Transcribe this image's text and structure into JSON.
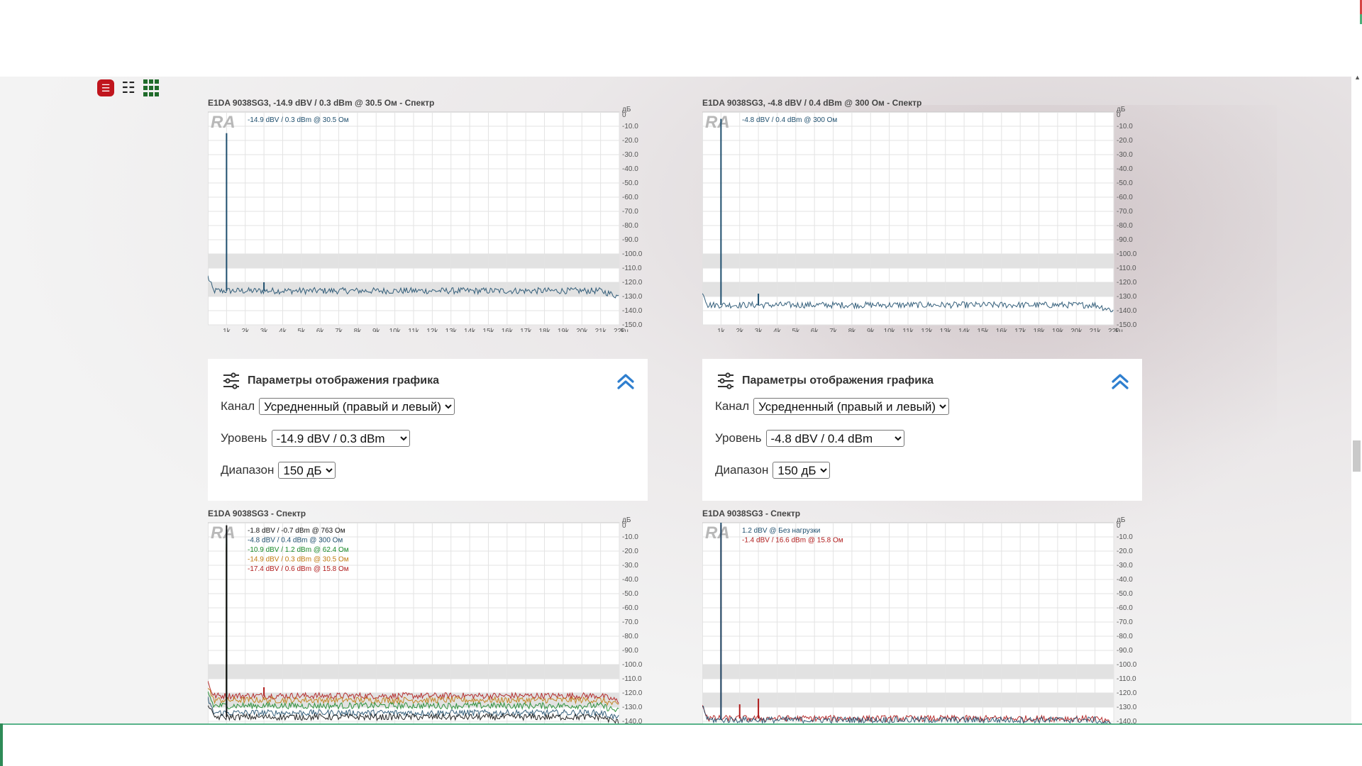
{
  "colors": {
    "accent_red": "#c0151d",
    "grid_green": "#1f6b2a",
    "chevron_blue": "#2f7fcf",
    "trace_blue": "#1f4f6e",
    "bottom_bar_green": "#59b38a"
  },
  "view_toggles": {
    "icons": [
      "menu-icon",
      "list-icon",
      "grid-icon"
    ],
    "menu_glyph": "☰",
    "list_glyph": "☷"
  },
  "charts": [
    {
      "title": "E1DA 9038SG3, -14.9 dBV / 0.3 dBm @ 30.5 Ом - Спектр",
      "logo": "RA",
      "yunit": "дБ",
      "xunit": "Гц",
      "ytop": "0",
      "yticks": [
        "-10.0",
        "-20.0",
        "-30.0",
        "-40.0",
        "-50.0",
        "-60.0",
        "-70.0",
        "-80.0",
        "-90.0",
        "-100.0",
        "-110.0",
        "-120.0",
        "-130.0",
        "-140.0",
        "-150.0"
      ],
      "xticks": [
        "1k",
        "2k",
        "3k",
        "4k",
        "5k",
        "6k",
        "7k",
        "8k",
        "9k",
        "10k",
        "11k",
        "12k",
        "13k",
        "14k",
        "15k",
        "16k",
        "17k",
        "18k",
        "19k",
        "20k",
        "21k",
        "22k"
      ],
      "legend": [
        {
          "label": "-14.9 dBV / 0.3 dBm @ 30.5 Ом",
          "color": "#1f4f6e"
        }
      ]
    },
    {
      "title": "E1DA 9038SG3, -4.8 dBV / 0.4 dBm @ 300 Ом - Спектр",
      "logo": "RA",
      "yunit": "дБ",
      "xunit": "Гц",
      "ytop": "0",
      "yticks": [
        "-10.0",
        "-20.0",
        "-30.0",
        "-40.0",
        "-50.0",
        "-60.0",
        "-70.0",
        "-80.0",
        "-90.0",
        "-100.0",
        "-110.0",
        "-120.0",
        "-130.0",
        "-140.0",
        "-150.0"
      ],
      "xticks": [
        "1k",
        "2k",
        "3k",
        "4k",
        "5k",
        "6k",
        "7k",
        "8k",
        "9k",
        "10k",
        "11k",
        "12k",
        "13k",
        "14k",
        "15k",
        "16k",
        "17k",
        "18k",
        "19k",
        "20k",
        "21k",
        "22k"
      ],
      "legend": [
        {
          "label": "-4.8 dBV / 0.4 dBm @ 300 Ом",
          "color": "#1f4f6e"
        }
      ]
    },
    {
      "title": "E1DA 9038SG3 - Спектр",
      "logo": "RA",
      "yunit": "дБ",
      "ytop": "0",
      "yticks": [
        "-10.0",
        "-20.0",
        "-30.0",
        "-40.0",
        "-50.0",
        "-60.0",
        "-70.0",
        "-80.0",
        "-90.0",
        "-100.0",
        "-110.0",
        "-120.0",
        "-130.0",
        "-140.0"
      ],
      "legend": [
        {
          "label": "-1.8 dBV / -0.7 dBm @ 763 Ом",
          "color": "#111111"
        },
        {
          "label": "-4.8 dBV / 0.4 dBm @ 300 Ом",
          "color": "#1f4f6e"
        },
        {
          "label": "-10.9 dBV / 1.2 dBm @ 62.4 Ом",
          "color": "#1a8a2a"
        },
        {
          "label": "-14.9 dBV / 0.3 dBm @ 30.5 Ом",
          "color": "#c07a10"
        },
        {
          "label": "-17.4 dBV / 0.6 dBm @ 15.8 Ом",
          "color": "#b01c1c"
        }
      ]
    },
    {
      "title": "E1DA 9038SG3 - Спектр",
      "logo": "RA",
      "yunit": "дБ",
      "ytop": "0",
      "yticks": [
        "-10.0",
        "-20.0",
        "-30.0",
        "-40.0",
        "-50.0",
        "-60.0",
        "-70.0",
        "-80.0",
        "-90.0",
        "-100.0",
        "-110.0",
        "-120.0",
        "-130.0",
        "-140.0"
      ],
      "legend": [
        {
          "label": "1.2 dBV @ Без нагрузки",
          "color": "#1f4f6e"
        },
        {
          "label": "-1.4 dBV / 16.6 dBm @ 15.8 Ом",
          "color": "#b01c1c"
        }
      ]
    }
  ],
  "chart_data": [
    {
      "type": "line",
      "title": "E1DA 9038SG3, -14.9 dBV / 0.3 dBm @ 30.5 Ом - Спектр",
      "xlabel": "Гц",
      "ylabel": "дБ",
      "xlim": [
        0,
        22000
      ],
      "ylim": [
        -150,
        0
      ],
      "series": [
        {
          "name": "-14.9 dBV / 0.3 dBm @ 30.5 Ом",
          "noise_floor_db": -126,
          "peaks": [
            {
              "x": 1000,
              "y": -14.9
            },
            {
              "x": 3000,
              "y": -120
            }
          ]
        }
      ]
    },
    {
      "type": "line",
      "title": "E1DA 9038SG3, -4.8 dBV / 0.4 dBm @ 300 Ом - Спектр",
      "xlabel": "Гц",
      "ylabel": "дБ",
      "xlim": [
        0,
        22000
      ],
      "ylim": [
        -150,
        0
      ],
      "series": [
        {
          "name": "-4.8 dBV / 0.4 dBm @ 300 Ом",
          "noise_floor_db": -136,
          "peaks": [
            {
              "x": 1000,
              "y": -4.8
            },
            {
              "x": 3000,
              "y": -128
            }
          ]
        }
      ]
    },
    {
      "type": "line",
      "title": "E1DA 9038SG3 - Спектр",
      "ylabel": "дБ",
      "xlim": [
        0,
        22000
      ],
      "ylim": [
        -140,
        0
      ],
      "series": [
        {
          "name": "-1.8 dBV / -0.7 dBm @ 763 Ом",
          "noise_floor_db": -137,
          "peaks": [
            {
              "x": 1000,
              "y": -1.8
            }
          ]
        },
        {
          "name": "-4.8 dBV / 0.4 dBm @ 300 Ом",
          "noise_floor_db": -134,
          "peaks": [
            {
              "x": 1000,
              "y": -4.8
            }
          ]
        },
        {
          "name": "-10.9 dBV / 1.2 dBm @ 62.4 Ом",
          "noise_floor_db": -129,
          "peaks": [
            {
              "x": 1000,
              "y": -10.9
            }
          ]
        },
        {
          "name": "-14.9 dBV / 0.3 dBm @ 30.5 Ом",
          "noise_floor_db": -125,
          "peaks": [
            {
              "x": 1000,
              "y": -14.9
            }
          ]
        },
        {
          "name": "-17.4 dBV / 0.6 dBm @ 15.8 Ом",
          "noise_floor_db": -122,
          "peaks": [
            {
              "x": 1000,
              "y": -17.4
            },
            {
              "x": 3000,
              "y": -116
            }
          ]
        }
      ]
    },
    {
      "type": "line",
      "title": "E1DA 9038SG3 - Спектр",
      "ylabel": "дБ",
      "xlim": [
        0,
        22000
      ],
      "ylim": [
        -140,
        0
      ],
      "series": [
        {
          "name": "1.2 dBV @ Без нагрузки",
          "noise_floor_db": -139,
          "peaks": [
            {
              "x": 1000,
              "y": 1.2
            }
          ]
        },
        {
          "name": "-1.4 dBV / 16.6 dBm @ 15.8 Ом",
          "noise_floor_db": -138,
          "peaks": [
            {
              "x": 1000,
              "y": -1.4
            },
            {
              "x": 2000,
              "y": -128
            },
            {
              "x": 3000,
              "y": -124
            }
          ]
        }
      ]
    }
  ],
  "panels": [
    {
      "title": "Параметры отображения графика",
      "channel_label": "Канал",
      "channel_value": "Усредненный (правый и левый)",
      "level_label": "Уровень",
      "level_value": "-14.9 dBV / 0.3 dBm",
      "range_label": "Диапазон",
      "range_value": "150 дБ"
    },
    {
      "title": "Параметры отображения графика",
      "channel_label": "Канал",
      "channel_value": "Усредненный (правый и левый)",
      "level_label": "Уровень",
      "level_value": "-4.8 dBV / 0.4 dBm",
      "range_label": "Диапазон",
      "range_value": "150 дБ"
    }
  ]
}
